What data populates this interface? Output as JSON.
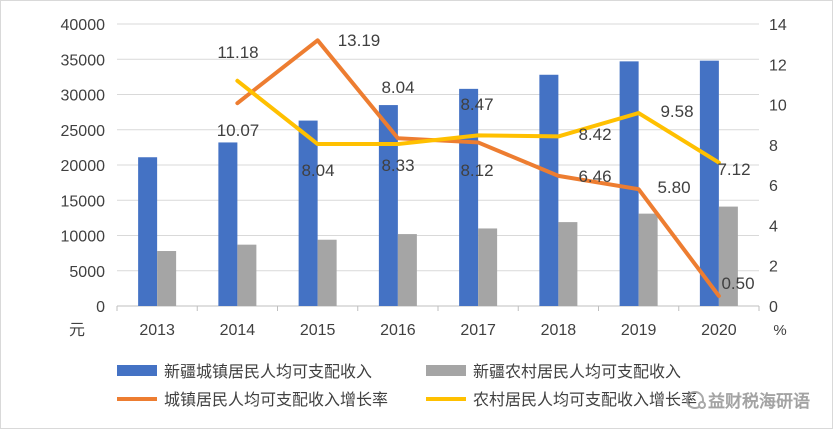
{
  "chart_data": {
    "type": "bar",
    "title": "",
    "categories": [
      "2013",
      "2014",
      "2015",
      "2016",
      "2017",
      "2018",
      "2019",
      "2020"
    ],
    "left_axis": {
      "unit": "元",
      "ylim": [
        0,
        40000
      ],
      "ticks": [
        0,
        5000,
        10000,
        15000,
        20000,
        25000,
        30000,
        35000,
        40000
      ]
    },
    "right_axis": {
      "unit": "%",
      "ylim": [
        0,
        14
      ],
      "ticks": [
        0,
        2,
        4,
        6,
        8,
        10,
        12,
        14
      ]
    },
    "bar_series": [
      {
        "name": "新疆城镇居民人均可支配收入",
        "color": "#4472c4",
        "values": [
          21100,
          23200,
          26300,
          28500,
          30800,
          32800,
          34700,
          34800
        ]
      },
      {
        "name": "新疆农村居民人均可支配收入",
        "color": "#a5a5a5",
        "values": [
          7800,
          8700,
          9400,
          10200,
          11000,
          11900,
          13100,
          14100
        ]
      }
    ],
    "line_series": [
      {
        "name": "城镇居民人均可支配收入增长率",
        "color": "#ed7d31",
        "x_start_index": 1,
        "values": [
          10.07,
          13.19,
          8.33,
          8.12,
          6.46,
          5.8,
          0.5
        ],
        "labels": [
          "10.07",
          "13.19",
          "8.33",
          "8.12",
          "6.46",
          "5.80",
          "0.50"
        ]
      },
      {
        "name": "农村居民人均可支配收入增长率",
        "color": "#ffc000",
        "x_start_index": 1,
        "values": [
          11.18,
          8.04,
          8.04,
          8.47,
          8.42,
          9.58,
          7.12
        ],
        "labels": [
          "11.18",
          "8.04",
          "8.04",
          "8.47",
          "8.42",
          "9.58",
          "7.12"
        ]
      }
    ],
    "grid": true,
    "legend_position": "bottom"
  },
  "watermark": "益财税海研语",
  "watermark_icon": "wechat-icon"
}
